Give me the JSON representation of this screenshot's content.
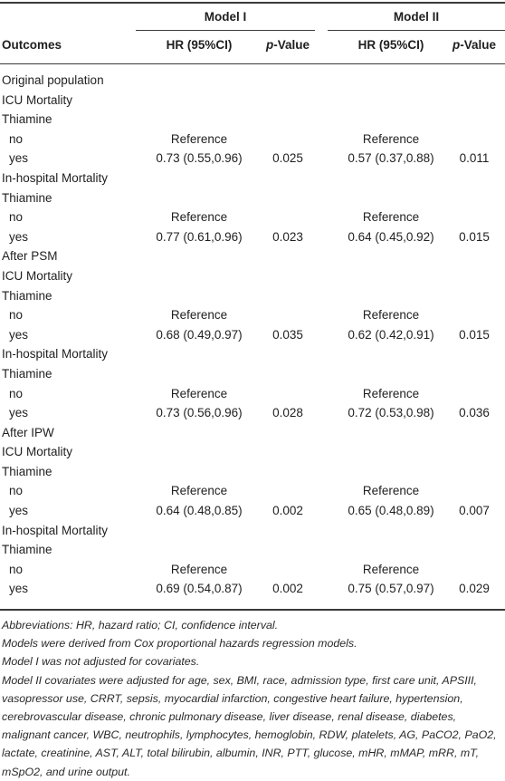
{
  "header": {
    "model1": "Model I",
    "model2": "Model II",
    "outcomes": "Outcomes",
    "hr_label": "HR (95%CI)",
    "p_italic": "p",
    "p_rest": "-Value"
  },
  "rows": [
    {
      "label": "Original population",
      "indent": false,
      "hr1": "",
      "p1": "",
      "hr2": "",
      "p2": ""
    },
    {
      "label": "ICU Mortality",
      "indent": false,
      "hr1": "",
      "p1": "",
      "hr2": "",
      "p2": ""
    },
    {
      "label": "Thiamine",
      "indent": false,
      "hr1": "",
      "p1": "",
      "hr2": "",
      "p2": ""
    },
    {
      "label": "no",
      "indent": true,
      "hr1": "Reference",
      "p1": "",
      "hr2": "Reference",
      "p2": ""
    },
    {
      "label": "yes",
      "indent": true,
      "hr1": "0.73 (0.55,0.96)",
      "p1": "0.025",
      "hr2": "0.57 (0.37,0.88)",
      "p2": "0.011"
    },
    {
      "label": "In-hospital Mortality",
      "indent": false,
      "hr1": "",
      "p1": "",
      "hr2": "",
      "p2": ""
    },
    {
      "label": "Thiamine",
      "indent": false,
      "hr1": "",
      "p1": "",
      "hr2": "",
      "p2": ""
    },
    {
      "label": "no",
      "indent": true,
      "hr1": "Reference",
      "p1": "",
      "hr2": "Reference",
      "p2": ""
    },
    {
      "label": "yes",
      "indent": true,
      "hr1": "0.77 (0.61,0.96)",
      "p1": "0.023",
      "hr2": "0.64 (0.45,0.92)",
      "p2": "0.015"
    },
    {
      "label": "After PSM",
      "indent": false,
      "hr1": "",
      "p1": "",
      "hr2": "",
      "p2": ""
    },
    {
      "label": "ICU Mortality",
      "indent": false,
      "hr1": "",
      "p1": "",
      "hr2": "",
      "p2": ""
    },
    {
      "label": "Thiamine",
      "indent": false,
      "hr1": "",
      "p1": "",
      "hr2": "",
      "p2": ""
    },
    {
      "label": "no",
      "indent": true,
      "hr1": "Reference",
      "p1": "",
      "hr2": "Reference",
      "p2": ""
    },
    {
      "label": "yes",
      "indent": true,
      "hr1": "0.68 (0.49,0.97)",
      "p1": "0.035",
      "hr2": "0.62 (0.42,0.91)",
      "p2": "0.015"
    },
    {
      "label": "In-hospital Mortality",
      "indent": false,
      "hr1": "",
      "p1": "",
      "hr2": "",
      "p2": ""
    },
    {
      "label": "Thiamine",
      "indent": false,
      "hr1": "",
      "p1": "",
      "hr2": "",
      "p2": ""
    },
    {
      "label": "no",
      "indent": true,
      "hr1": "Reference",
      "p1": "",
      "hr2": "Reference",
      "p2": ""
    },
    {
      "label": "yes",
      "indent": true,
      "hr1": "0.73 (0.56,0.96)",
      "p1": "0.028",
      "hr2": "0.72 (0.53,0.98)",
      "p2": "0.036"
    },
    {
      "label": "After IPW",
      "indent": false,
      "hr1": "",
      "p1": "",
      "hr2": "",
      "p2": ""
    },
    {
      "label": "ICU Mortality",
      "indent": false,
      "hr1": "",
      "p1": "",
      "hr2": "",
      "p2": ""
    },
    {
      "label": "Thiamine",
      "indent": false,
      "hr1": "",
      "p1": "",
      "hr2": "",
      "p2": ""
    },
    {
      "label": "no",
      "indent": true,
      "hr1": "Reference",
      "p1": "",
      "hr2": "Reference",
      "p2": ""
    },
    {
      "label": "yes",
      "indent": true,
      "hr1": "0.64 (0.48,0.85)",
      "p1": "0.002",
      "hr2": "0.65 (0.48,0.89)",
      "p2": "0.007"
    },
    {
      "label": "In-hospital Mortality",
      "indent": false,
      "hr1": "",
      "p1": "",
      "hr2": "",
      "p2": ""
    },
    {
      "label": "Thiamine",
      "indent": false,
      "hr1": "",
      "p1": "",
      "hr2": "",
      "p2": ""
    },
    {
      "label": "no",
      "indent": true,
      "hr1": "Reference",
      "p1": "",
      "hr2": "Reference",
      "p2": ""
    },
    {
      "label": "yes",
      "indent": true,
      "hr1": "0.69 (0.54,0.87)",
      "p1": "0.002",
      "hr2": "0.75 (0.57,0.97)",
      "p2": "0.029"
    }
  ],
  "footnotes": [
    "Abbreviations: HR, hazard ratio; CI, confidence interval.",
    "Models were derived from Cox proportional hazards regression models.",
    "Model I was not adjusted for covariates.",
    "Model II covariates were adjusted for age, sex, BMI, race, admission type, first care unit, APSIII, vasopressor use, CRRT, sepsis, myocardial infarction, congestive heart failure, hypertension, cerebrovascular disease, chronic pulmonary disease, liver disease, renal disease, diabetes, malignant cancer, WBC, neutrophils, lymphocytes, hemoglobin, RDW, platelets, AG, PaCO2, PaO2, lactate, creatinine, AST, ALT, total bilirubin, albumin, INR, PTT, glucose, mHR, mMAP, mRR, mT, mSpO2, and urine output."
  ]
}
